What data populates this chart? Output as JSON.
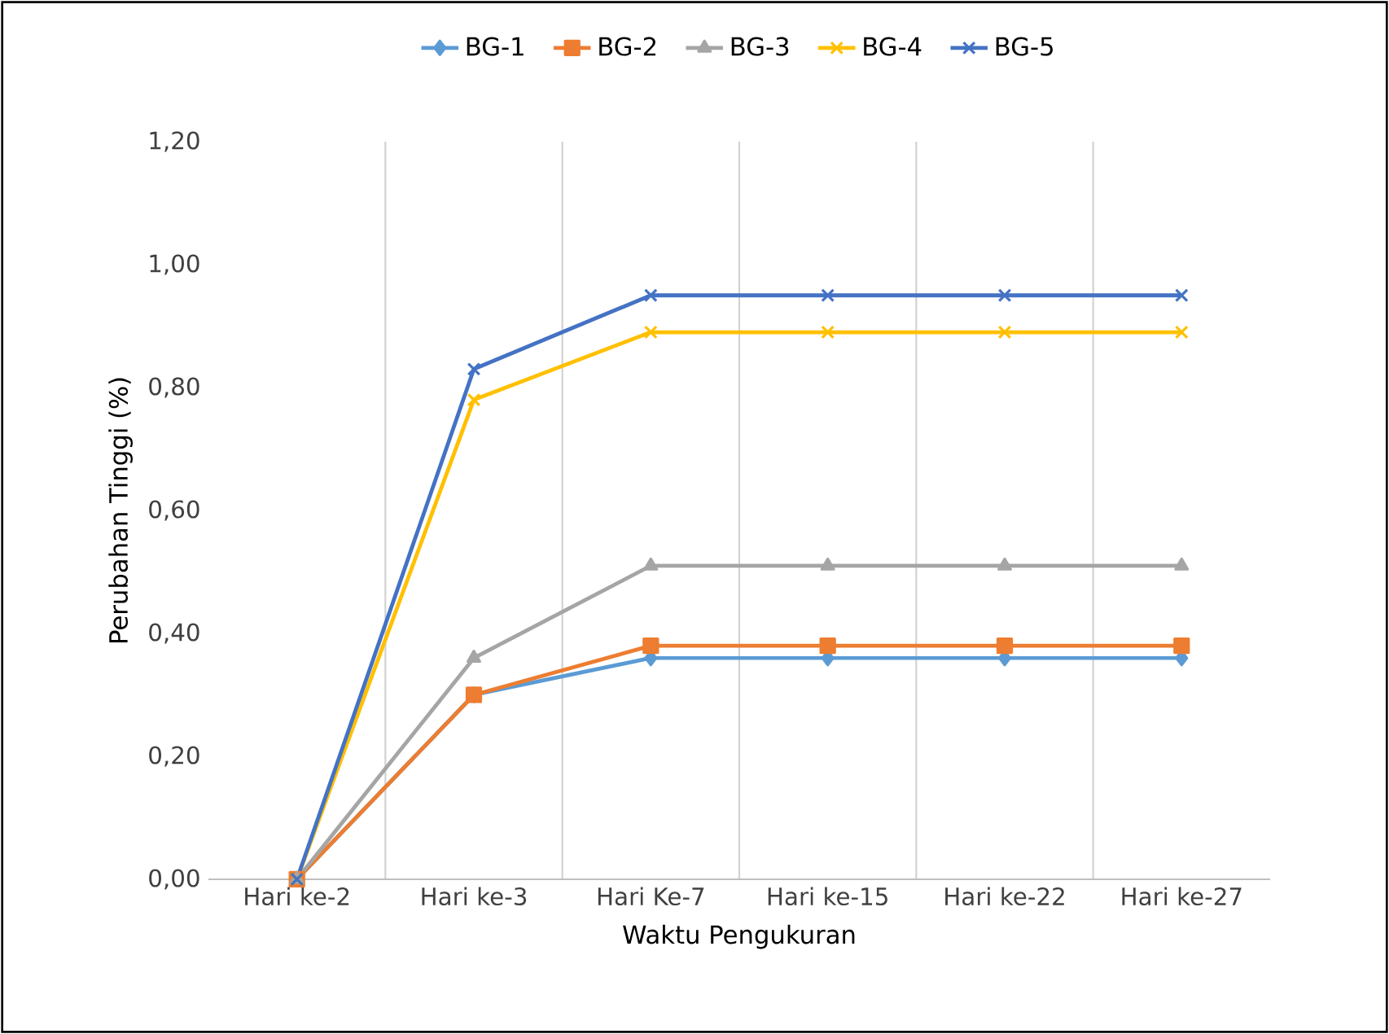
{
  "chart_data": {
    "type": "line",
    "xlabel": "Waktu Pengukuran",
    "ylabel": "Perubahan Tinggi (%)",
    "categories": [
      "Hari ke-2",
      "Hari ke-3",
      "Hari Ke-7",
      "Hari ke-15",
      "Hari ke-22",
      "Hari ke-27"
    ],
    "series": [
      {
        "name": "BG-1",
        "color": "#5b9bd5",
        "marker": "diamond",
        "values": [
          0,
          0.3,
          0.36,
          0.36,
          0.36,
          0.36
        ]
      },
      {
        "name": "BG-2",
        "color": "#ed7d31",
        "marker": "square",
        "values": [
          0,
          0.3,
          0.38,
          0.38,
          0.38,
          0.38
        ]
      },
      {
        "name": "BG-3",
        "color": "#a5a5a5",
        "marker": "triangle",
        "values": [
          0,
          0.36,
          0.51,
          0.51,
          0.51,
          0.51
        ]
      },
      {
        "name": "BG-4",
        "color": "#ffc000",
        "marker": "cross",
        "values": [
          0,
          0.78,
          0.89,
          0.89,
          0.89,
          0.89
        ]
      },
      {
        "name": "BG-5",
        "color": "#4472c4",
        "marker": "cross",
        "values": [
          0,
          0.83,
          0.95,
          0.95,
          0.95,
          0.95
        ]
      }
    ],
    "ylim": [
      0,
      1.2
    ],
    "yticks": [
      {
        "value": 0,
        "label": "0,00"
      },
      {
        "value": 0.2,
        "label": "0,20"
      },
      {
        "value": 0.4,
        "label": "0,40"
      },
      {
        "value": 0.6,
        "label": "0,60"
      },
      {
        "value": 0.8,
        "label": "0,80"
      },
      {
        "value": 1.0,
        "label": "1,00"
      },
      {
        "value": 1.2,
        "label": "1,20"
      }
    ],
    "grid": "x",
    "legend": "top",
    "line_style": "solid"
  }
}
